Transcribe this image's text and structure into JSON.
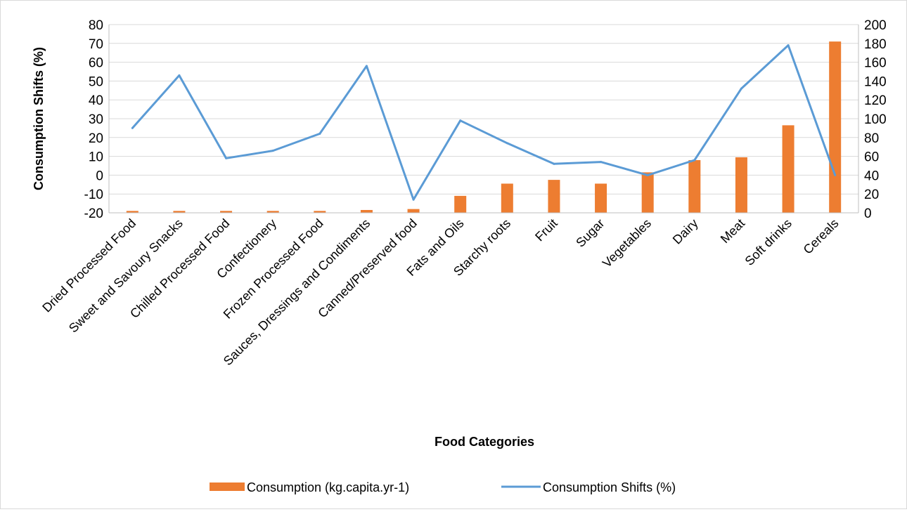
{
  "chart_data": {
    "type": "bar+line",
    "title": "",
    "xlabel": "Food Categories",
    "ylabel_left": "Consumption Shifts (%)",
    "ylabel_right": "",
    "categories": [
      "Dried Processed Food",
      "Sweet and Savoury Snacks",
      "Chilled Processed Food",
      "Confectionery",
      "Frozen Processed Food",
      "Sauces, Dressings and Condiments",
      "Canned/Preserved food",
      "Fats and Oils",
      "Starchy roots",
      "Fruit",
      "Sugar",
      "Vegetables",
      "Dairy",
      "Meat",
      "Soft drinks",
      "Cereals"
    ],
    "left_axis": {
      "min": -20,
      "max": 80,
      "step": 10,
      "ticks": [
        "80",
        "70",
        "60",
        "50",
        "40",
        "30",
        "20",
        "10",
        "0",
        "-10",
        "-20"
      ]
    },
    "right_axis": {
      "min": 0,
      "max": 200,
      "step": 20,
      "ticks": [
        "200",
        "180",
        "160",
        "140",
        "120",
        "100",
        "80",
        "60",
        "40",
        "20",
        "0"
      ]
    },
    "series": [
      {
        "name": "Consumption (kg.capita.yr-1)",
        "type": "bar",
        "axis": "right",
        "color": "#ed7d31",
        "values": [
          2,
          2,
          2,
          2,
          2,
          3,
          4,
          18,
          31,
          35,
          31,
          43,
          56,
          59,
          93,
          182
        ]
      },
      {
        "name": "Consumption Shifts (%)",
        "type": "line",
        "axis": "left",
        "color": "#5b9bd5",
        "values": [
          25,
          53,
          9,
          13,
          22,
          58,
          -13,
          29,
          17,
          6,
          7,
          0,
          8,
          46,
          69,
          0
        ]
      }
    ],
    "grid": true,
    "legend_position": "bottom"
  }
}
